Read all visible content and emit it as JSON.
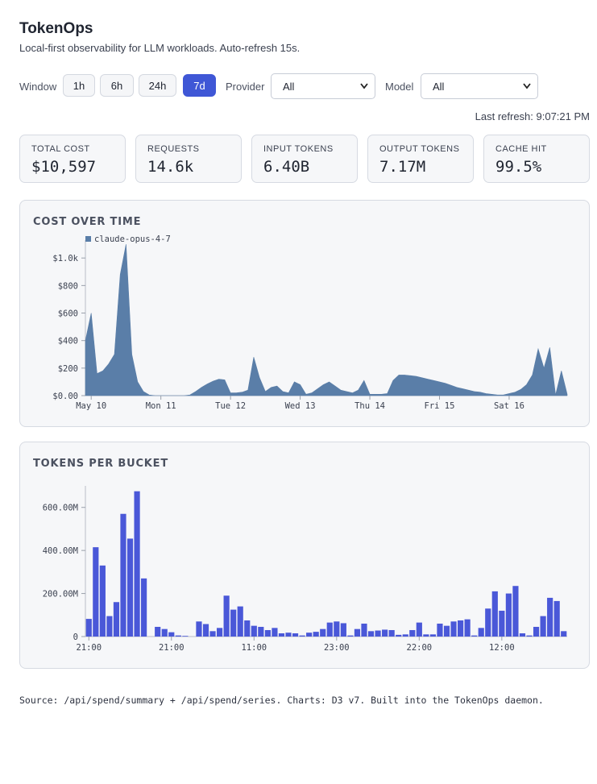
{
  "header": {
    "title": "TokenOps",
    "subtitle": "Local-first observability for LLM workloads. Auto-refresh 15s."
  },
  "controls": {
    "window": {
      "label": "Window",
      "options": [
        "1h",
        "6h",
        "24h",
        "7d"
      ],
      "active": "7d"
    },
    "provider": {
      "label": "Provider",
      "value": "All"
    },
    "model": {
      "label": "Model",
      "value": "All"
    },
    "last_refresh": "Last refresh: 9:07:21 PM"
  },
  "stats": [
    {
      "label": "TOTAL COST",
      "value": "$10,597"
    },
    {
      "label": "REQUESTS",
      "value": "14.6k"
    },
    {
      "label": "INPUT TOKENS",
      "value": "6.40B"
    },
    {
      "label": "OUTPUT TOKENS",
      "value": "7.17M"
    },
    {
      "label": "CACHE HIT",
      "value": "99.5%"
    }
  ],
  "chart_data": [
    {
      "type": "area",
      "title": "COST OVER TIME",
      "categories": [
        null,
        "May 10",
        null,
        null,
        null,
        null,
        null,
        null,
        null,
        null,
        null,
        null,
        null,
        "Mon 11",
        null,
        null,
        null,
        null,
        null,
        null,
        null,
        null,
        null,
        null,
        null,
        "Tue 12",
        null,
        null,
        null,
        null,
        null,
        null,
        null,
        null,
        null,
        null,
        null,
        "Wed 13",
        null,
        null,
        null,
        null,
        null,
        null,
        null,
        null,
        null,
        null,
        null,
        "Thu 14",
        null,
        null,
        null,
        null,
        null,
        null,
        null,
        null,
        null,
        null,
        null,
        "Fri 15",
        null,
        null,
        null,
        null,
        null,
        null,
        null,
        null,
        null,
        null,
        null,
        "Sat 16",
        null,
        null,
        null,
        null,
        null,
        null,
        null,
        null,
        null,
        null
      ],
      "series": [
        {
          "name": "claude-opus-4-7",
          "color": "#5a7ea8",
          "values": [
            400,
            600,
            160,
            180,
            230,
            300,
            880,
            1100,
            300,
            100,
            30,
            5,
            0,
            0,
            0,
            0,
            0,
            0,
            5,
            30,
            60,
            85,
            105,
            120,
            115,
            20,
            20,
            25,
            40,
            280,
            130,
            30,
            60,
            70,
            30,
            20,
            100,
            80,
            10,
            20,
            50,
            80,
            100,
            70,
            40,
            30,
            20,
            40,
            110,
            10,
            10,
            10,
            15,
            110,
            150,
            150,
            145,
            140,
            130,
            120,
            110,
            100,
            90,
            75,
            60,
            50,
            40,
            30,
            25,
            15,
            10,
            5,
            5,
            15,
            25,
            45,
            80,
            150,
            340,
            200,
            350,
            5,
            180,
            10
          ]
        }
      ],
      "ylim": [
        0,
        1130
      ],
      "yticks": [
        {
          "value": 0,
          "label": "$0.00"
        },
        {
          "value": 200,
          "label": "$200"
        },
        {
          "value": 400,
          "label": "$400"
        },
        {
          "value": 600,
          "label": "$600"
        },
        {
          "value": 800,
          "label": "$800"
        },
        {
          "value": 1000,
          "label": "$1.0k"
        }
      ],
      "legend": "top-left"
    },
    {
      "type": "bar",
      "title": "TOKENS PER BUCKET",
      "categories": [
        "21:00",
        null,
        null,
        null,
        null,
        null,
        null,
        null,
        null,
        null,
        null,
        null,
        "21:00",
        null,
        null,
        null,
        null,
        null,
        null,
        null,
        null,
        null,
        null,
        null,
        "11:00",
        null,
        null,
        null,
        null,
        null,
        null,
        null,
        null,
        null,
        null,
        null,
        "23:00",
        null,
        null,
        null,
        null,
        null,
        null,
        null,
        null,
        null,
        null,
        null,
        "22:00",
        null,
        null,
        null,
        null,
        null,
        null,
        null,
        null,
        null,
        null,
        null,
        "12:00",
        null,
        null,
        null,
        null,
        null,
        null,
        null,
        null,
        null
      ],
      "color": "#4a58d8",
      "values": [
        82000000,
        415000000,
        330000000,
        95000000,
        160000000,
        570000000,
        455000000,
        675000000,
        270000000,
        0,
        45000000,
        35000000,
        20000000,
        5000000,
        3000000,
        0,
        70000000,
        58000000,
        25000000,
        40000000,
        190000000,
        125000000,
        140000000,
        75000000,
        50000000,
        45000000,
        30000000,
        40000000,
        15000000,
        18000000,
        15000000,
        5000000,
        18000000,
        22000000,
        35000000,
        65000000,
        70000000,
        62000000,
        5000000,
        35000000,
        60000000,
        25000000,
        28000000,
        32000000,
        30000000,
        8000000,
        10000000,
        30000000,
        65000000,
        10000000,
        10000000,
        60000000,
        50000000,
        70000000,
        75000000,
        80000000,
        5000000,
        40000000,
        130000000,
        210000000,
        120000000,
        200000000,
        235000000,
        15000000,
        5000000,
        45000000,
        95000000,
        180000000,
        165000000,
        25000000
      ],
      "ylim": [
        0,
        700000000
      ],
      "yticks": [
        0,
        {
          "value": 200000000,
          "label": "200.00M"
        },
        {
          "value": 400000000,
          "label": "400.00M"
        },
        {
          "value": 600000000,
          "label": "600.00M"
        }
      ]
    }
  ],
  "footer": "Source: /api/spend/summary + /api/spend/series. Charts: D3 v7. Built into the TokenOps daemon."
}
